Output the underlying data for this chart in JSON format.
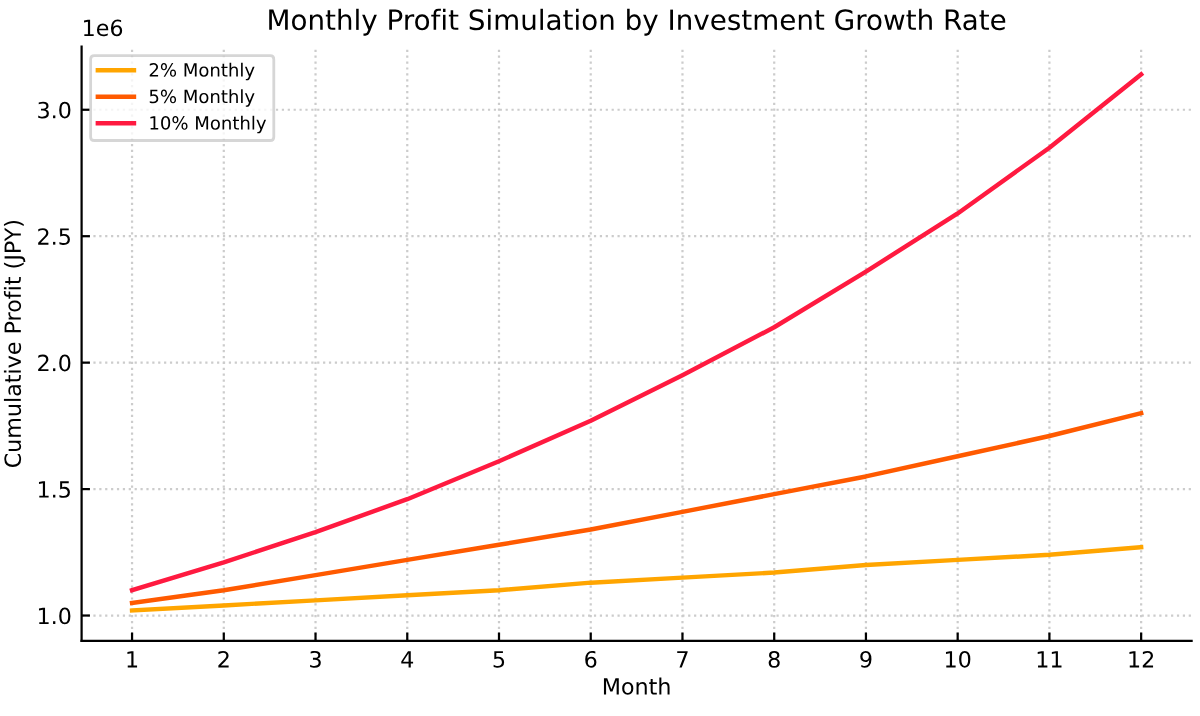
{
  "chart_data": {
    "type": "line",
    "title": "Monthly Profit Simulation by Investment Growth Rate",
    "xlabel": "Month",
    "ylabel": "Cumulative Profit (JPY)",
    "annotations": [
      "1e6"
    ],
    "x": [
      1,
      2,
      3,
      4,
      5,
      6,
      7,
      8,
      9,
      10,
      11,
      12
    ],
    "series": [
      {
        "name": "2% Monthly",
        "color": "#ffa500",
        "values": [
          1.02,
          1.04,
          1.06,
          1.08,
          1.1,
          1.13,
          1.15,
          1.17,
          1.2,
          1.22,
          1.24,
          1.27
        ]
      },
      {
        "name": "5% Monthly",
        "color": "#ff5a00",
        "values": [
          1.05,
          1.1,
          1.16,
          1.22,
          1.28,
          1.34,
          1.41,
          1.48,
          1.55,
          1.63,
          1.71,
          1.8
        ]
      },
      {
        "name": "10% Monthly",
        "color": "#ff1a40",
        "values": [
          1.1,
          1.21,
          1.33,
          1.46,
          1.61,
          1.77,
          1.95,
          2.14,
          2.36,
          2.59,
          2.85,
          3.14
        ]
      }
    ],
    "xlim": [
      0.45,
      12.55
    ],
    "xticks": [
      1,
      2,
      3,
      4,
      5,
      6,
      7,
      8,
      9,
      10,
      11,
      12
    ],
    "ylim": [
      0.9,
      3.25
    ],
    "yticks": [
      {
        "value": 1.0,
        "label": "1.0"
      },
      {
        "value": 1.5,
        "label": "1.5"
      },
      {
        "value": 2.0,
        "label": "2.0"
      },
      {
        "value": 2.5,
        "label": "2.5"
      },
      {
        "value": 3.0,
        "label": "3.0"
      }
    ],
    "grid": true,
    "legend": "top left",
    "line_style": "solid",
    "marker": "none"
  }
}
